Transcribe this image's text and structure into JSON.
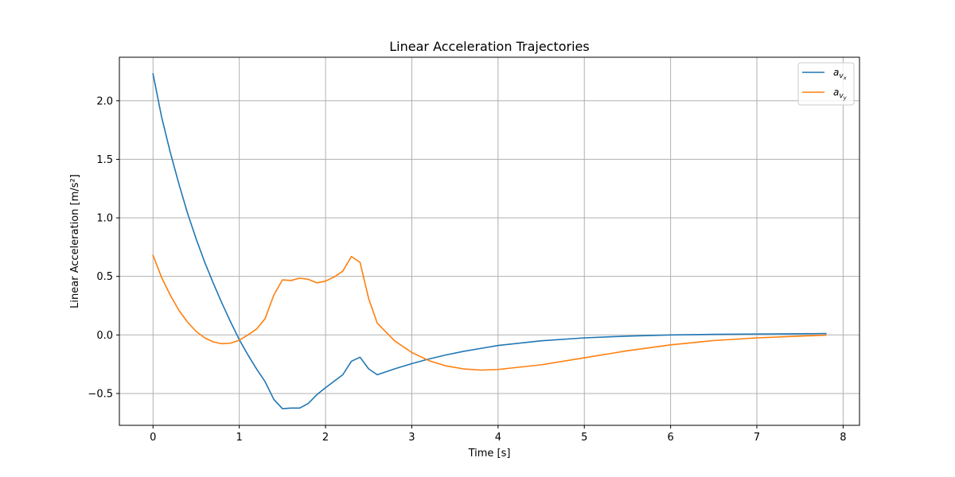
{
  "chart_data": {
    "type": "line",
    "title": "Linear Acceleration Trajectories",
    "xlabel": "Time [s]",
    "ylabel": "Linear Acceleration [m/s²]",
    "xlim": [
      -0.39,
      8.19
    ],
    "ylim": [
      -0.772,
      2.372
    ],
    "xticks": [
      0,
      1,
      2,
      3,
      4,
      5,
      6,
      7,
      8
    ],
    "yticks": [
      -0.5,
      0.0,
      0.5,
      1.0,
      1.5,
      2.0
    ],
    "xtick_labels": [
      "0",
      "1",
      "2",
      "3",
      "4",
      "5",
      "6",
      "7",
      "8"
    ],
    "ytick_labels": [
      "−0.5",
      "0.0",
      "0.5",
      "1.0",
      "1.5",
      "2.0"
    ],
    "grid": true,
    "legend_position": "top-right",
    "series": [
      {
        "name": "a_{v_x}",
        "legend_main": "a",
        "legend_sub": "v",
        "legend_subsub": "x",
        "color": "#1f77b4",
        "x": [
          0,
          0.1,
          0.2,
          0.3,
          0.4,
          0.5,
          0.6,
          0.7,
          0.8,
          0.9,
          1.0,
          1.1,
          1.2,
          1.3,
          1.4,
          1.5,
          1.6,
          1.7,
          1.8,
          1.9,
          2.0,
          2.1,
          2.2,
          2.3,
          2.4,
          2.5,
          2.6,
          2.8,
          3.0,
          3.2,
          3.4,
          3.6,
          3.8,
          4.0,
          4.5,
          5.0,
          5.5,
          6.0,
          6.5,
          7.0,
          7.5,
          7.8
        ],
        "y": [
          2.23,
          1.86,
          1.56,
          1.29,
          1.04,
          0.82,
          0.62,
          0.44,
          0.27,
          0.11,
          -0.04,
          -0.17,
          -0.29,
          -0.4,
          -0.55,
          -0.63,
          -0.625,
          -0.625,
          -0.585,
          -0.51,
          -0.45,
          -0.395,
          -0.34,
          -0.225,
          -0.19,
          -0.29,
          -0.34,
          -0.29,
          -0.245,
          -0.205,
          -0.17,
          -0.14,
          -0.115,
          -0.09,
          -0.05,
          -0.025,
          -0.01,
          0.0,
          0.005,
          0.008,
          0.01,
          0.012
        ]
      },
      {
        "name": "a_{v_y}",
        "legend_main": "a",
        "legend_sub": "v",
        "legend_subsub": "y",
        "color": "#ff7f0e",
        "x": [
          0,
          0.1,
          0.2,
          0.3,
          0.4,
          0.5,
          0.6,
          0.7,
          0.8,
          0.9,
          1.0,
          1.1,
          1.2,
          1.3,
          1.4,
          1.5,
          1.6,
          1.7,
          1.8,
          1.9,
          2.0,
          2.1,
          2.2,
          2.3,
          2.4,
          2.5,
          2.6,
          2.8,
          3.0,
          3.2,
          3.4,
          3.6,
          3.8,
          4.0,
          4.5,
          5.0,
          5.5,
          6.0,
          6.5,
          7.0,
          7.5,
          7.8
        ],
        "y": [
          0.68,
          0.49,
          0.34,
          0.21,
          0.11,
          0.03,
          -0.025,
          -0.06,
          -0.075,
          -0.07,
          -0.045,
          0.0,
          0.05,
          0.14,
          0.34,
          0.47,
          0.465,
          0.485,
          0.475,
          0.445,
          0.46,
          0.495,
          0.545,
          0.67,
          0.62,
          0.31,
          0.1,
          -0.05,
          -0.15,
          -0.22,
          -0.265,
          -0.29,
          -0.3,
          -0.295,
          -0.255,
          -0.195,
          -0.135,
          -0.085,
          -0.048,
          -0.025,
          -0.01,
          -0.002
        ]
      }
    ]
  }
}
